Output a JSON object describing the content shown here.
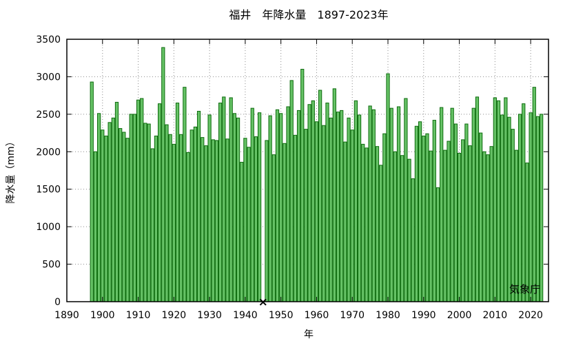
{
  "chart_data": {
    "type": "bar",
    "title": "福井　年降水量　1897-2023年",
    "xlabel": "年",
    "ylabel": "降水量（mm）",
    "xlim": [
      1890,
      2025
    ],
    "ylim": [
      0,
      3500
    ],
    "xticks": [
      1890,
      1900,
      1910,
      1920,
      1930,
      1940,
      1950,
      1960,
      1970,
      1980,
      1990,
      2000,
      2010,
      2020
    ],
    "yticks": [
      0,
      500,
      1000,
      1500,
      2000,
      2500,
      3000,
      3500
    ],
    "grid": true,
    "credit": "気象庁",
    "missing_years": [
      1945
    ],
    "missing_marker": "×",
    "bar_color": "#66c266",
    "bar_edge_color": "#0d6b0d",
    "x": [
      1897,
      1898,
      1899,
      1900,
      1901,
      1902,
      1903,
      1904,
      1905,
      1906,
      1907,
      1908,
      1909,
      1910,
      1911,
      1912,
      1913,
      1914,
      1915,
      1916,
      1917,
      1918,
      1919,
      1920,
      1921,
      1922,
      1923,
      1924,
      1925,
      1926,
      1927,
      1928,
      1929,
      1930,
      1931,
      1932,
      1933,
      1934,
      1935,
      1936,
      1937,
      1938,
      1939,
      1940,
      1941,
      1942,
      1943,
      1944,
      1946,
      1947,
      1948,
      1949,
      1950,
      1951,
      1952,
      1953,
      1954,
      1955,
      1956,
      1957,
      1958,
      1959,
      1960,
      1961,
      1962,
      1963,
      1964,
      1965,
      1966,
      1967,
      1968,
      1969,
      1970,
      1971,
      1972,
      1973,
      1974,
      1975,
      1976,
      1977,
      1978,
      1979,
      1980,
      1981,
      1982,
      1983,
      1984,
      1985,
      1986,
      1987,
      1988,
      1989,
      1990,
      1991,
      1992,
      1993,
      1994,
      1995,
      1996,
      1997,
      1998,
      1999,
      2000,
      2001,
      2002,
      2003,
      2004,
      2005,
      2006,
      2007,
      2008,
      2009,
      2010,
      2011,
      2012,
      2013,
      2014,
      2015,
      2016,
      2017,
      2018,
      2019,
      2020,
      2021,
      2022,
      2023
    ],
    "values": [
      2930,
      2000,
      2510,
      2290,
      2210,
      2390,
      2450,
      2660,
      2310,
      2260,
      2180,
      2500,
      2500,
      2690,
      2710,
      2380,
      2370,
      2040,
      2210,
      2640,
      3390,
      2360,
      2230,
      2100,
      2650,
      2230,
      2860,
      1990,
      2290,
      2330,
      2540,
      2190,
      2080,
      2490,
      2160,
      2150,
      2650,
      2730,
      2170,
      2720,
      2510,
      2450,
      1860,
      2180,
      2060,
      2580,
      2200,
      2520,
      2150,
      2480,
      1960,
      2560,
      2510,
      2110,
      2600,
      2950,
      2220,
      2550,
      3100,
      2300,
      2630,
      2680,
      2400,
      2820,
      2350,
      2650,
      2450,
      2840,
      2530,
      2550,
      2130,
      2450,
      2290,
      2680,
      2490,
      2100,
      2050,
      2610,
      2560,
      2070,
      1820,
      2240,
      3040,
      2580,
      2000,
      2600,
      1950,
      2710,
      1900,
      1640,
      2340,
      2400,
      2210,
      2240,
      2010,
      2420,
      1520,
      2590,
      2020,
      2140,
      2580,
      2370,
      1980,
      2160,
      2370,
      2080,
      2580,
      2730,
      2250,
      2000,
      1960,
      2070,
      2720,
      2680,
      2490,
      2720,
      2460,
      2300,
      2020,
      2500,
      2640,
      1850,
      2520,
      2860,
      2470,
      2500
    ]
  }
}
